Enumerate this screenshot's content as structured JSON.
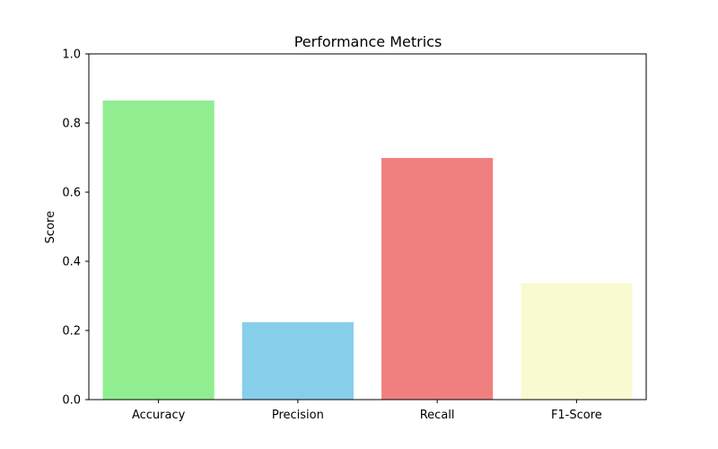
{
  "chart_data": {
    "type": "bar",
    "title": "Performance Metrics",
    "xlabel": "",
    "ylabel": "Score",
    "categories": [
      "Accuracy",
      "Precision",
      "Recall",
      "F1-Score"
    ],
    "values": [
      0.865,
      0.224,
      0.699,
      0.337
    ],
    "colors": [
      "#90ee90",
      "#87ceeb",
      "#f08080",
      "#fafad2"
    ],
    "ylim": [
      0,
      1.0
    ],
    "yticks": [
      "0.0",
      "0.2",
      "0.4",
      "0.6",
      "0.8",
      "1.0"
    ],
    "grid": false,
    "legend": "none"
  }
}
